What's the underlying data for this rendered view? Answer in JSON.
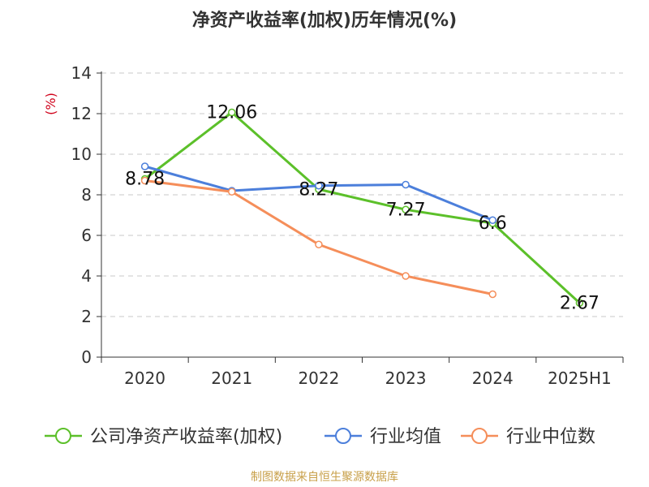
{
  "chart_data": {
    "type": "line",
    "title": "净资产收益率(加权)历年情况(%)",
    "ylabel": "(%)",
    "xlabel": "",
    "categories": [
      "2020",
      "2021",
      "2022",
      "2023",
      "2024",
      "2025H1"
    ],
    "ylim": [
      0,
      14
    ],
    "yticks": [
      0,
      2,
      4,
      6,
      8,
      10,
      12,
      14
    ],
    "grid": true,
    "legend_position": "bottom",
    "series": [
      {
        "name": "公司净资产收益率(加权)",
        "color": "#5cc02a",
        "values": [
          8.78,
          12.06,
          8.27,
          7.27,
          6.6,
          2.67
        ],
        "labels": [
          "8.78",
          "12.06",
          "8.27",
          "7.27",
          "6.6",
          "2.67"
        ]
      },
      {
        "name": "行业均值",
        "color": "#4c7fdb",
        "values": [
          9.4,
          8.2,
          8.45,
          8.5,
          6.75,
          null
        ]
      },
      {
        "name": "行业中位数",
        "color": "#f58e5a",
        "values": [
          8.7,
          8.15,
          5.55,
          4.0,
          3.1,
          null
        ]
      }
    ],
    "source": "制图数据来自恒生聚源数据库"
  }
}
